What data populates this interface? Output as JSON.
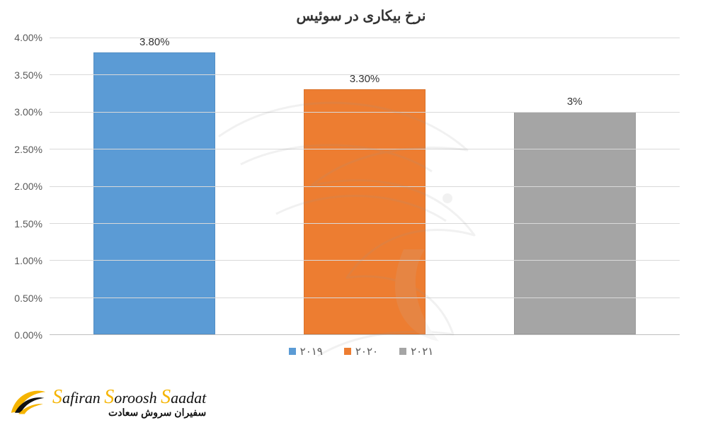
{
  "chart": {
    "type": "bar",
    "title": "نرخ بیکاری در سوئیس",
    "title_fontsize": 20,
    "title_color": "#333333",
    "background_color": "#ffffff",
    "ylim": [
      0,
      4.0
    ],
    "ytick_step": 0.5,
    "y_tick_labels": [
      "0.00%",
      "0.50%",
      "1.00%",
      "1.50%",
      "2.00%",
      "2.50%",
      "3.00%",
      "3.50%",
      "4.00%"
    ],
    "grid_color": "#d9d9d9",
    "axis_color": "#bfbfbf",
    "bar_width": 0.58,
    "label_fontsize": 14,
    "value_label_fontsize": 15,
    "series": [
      {
        "name": "۲۰۱۹",
        "value": 3.8,
        "value_label": "3.80%",
        "color": "#5b9bd5"
      },
      {
        "name": "۲۰۲۰",
        "value": 3.3,
        "value_label": "3.30%",
        "color": "#ed7d31"
      },
      {
        "name": "۲۰۲۱",
        "value": 3.0,
        "value_label": "3%",
        "color": "#a5a5a5"
      }
    ]
  },
  "watermark": {
    "color": "#c9c9c9",
    "opacity": 0.13
  },
  "brand": {
    "logo_color": "#f5b400",
    "name_en": "Safiran Soroosh Saadat",
    "name_fa": "سفیران سروش سعادت"
  }
}
